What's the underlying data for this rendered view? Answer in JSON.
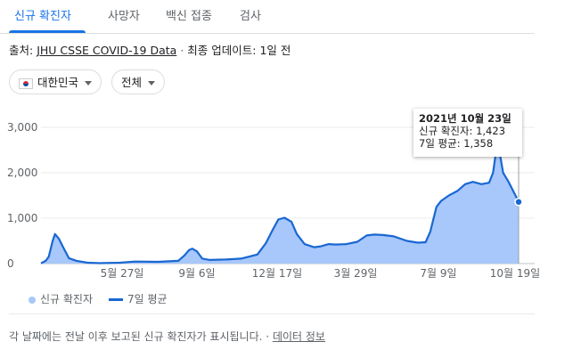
{
  "tabs": [
    {
      "label": "신규 확진자",
      "active": true
    },
    {
      "label": "사망자",
      "active": false
    },
    {
      "label": "백신 접종",
      "active": false
    },
    {
      "label": "검사",
      "active": false
    }
  ],
  "source": {
    "prefix": "출처:",
    "link": "JHU CSSE COVID-19 Data",
    "separator": "·",
    "updated": "최종 업데이트: 1일 전"
  },
  "filters": {
    "country": {
      "label": "대한민국",
      "flag_icon": "korea-flag-icon"
    },
    "period": {
      "label": "전체"
    }
  },
  "tooltip": {
    "date": "2021년 10월 23일",
    "new_cases": "신규 확진자: 1,423",
    "avg": "7일 평균: 1,358"
  },
  "legend": {
    "bars_label": "신규 확진자",
    "line_label": "7일 평균"
  },
  "footnote": {
    "text": "각 날짜에는 전날 이후 보고된 신규 확진자가 표시됩니다.",
    "separator": "·",
    "link": "데이터 정보"
  },
  "colors": {
    "accent": "#1a73e8",
    "bars": "#a8c7fa",
    "line": "#1967d2"
  },
  "chart_data": {
    "type": "area",
    "x_range": [
      "2020-02-15",
      "2021-10-23"
    ],
    "ylim": [
      0,
      3000
    ],
    "y_ticks": [
      "0",
      "1,000",
      "2,000",
      "3,000"
    ],
    "x_ticks": [
      "5월 27일",
      "9월 6일",
      "12월 17일",
      "3월 29일",
      "7월 9일",
      "10월 19일"
    ],
    "grid": true,
    "series": [
      {
        "name": "7일 평균",
        "x": [
          "2020-02-15",
          "2020-02-21",
          "2020-02-25",
          "2020-03-01",
          "2020-03-04",
          "2020-03-09",
          "2020-03-15",
          "2020-03-22",
          "2020-04-01",
          "2020-04-15",
          "2020-05-01",
          "2020-05-27",
          "2020-06-15",
          "2020-07-15",
          "2020-08-10",
          "2020-08-18",
          "2020-08-24",
          "2020-08-28",
          "2020-09-03",
          "2020-09-10",
          "2020-09-20",
          "2020-10-10",
          "2020-10-30",
          "2020-11-20",
          "2020-12-01",
          "2020-12-10",
          "2020-12-17",
          "2020-12-25",
          "2021-01-03",
          "2021-01-10",
          "2021-01-20",
          "2021-02-01",
          "2021-02-10",
          "2021-02-20",
          "2021-03-01",
          "2021-03-15",
          "2021-03-29",
          "2021-04-10",
          "2021-04-20",
          "2021-05-01",
          "2021-05-15",
          "2021-06-01",
          "2021-06-15",
          "2021-06-25",
          "2021-07-01",
          "2021-07-09",
          "2021-07-15",
          "2021-07-25",
          "2021-08-05",
          "2021-08-15",
          "2021-08-25",
          "2021-09-05",
          "2021-09-15",
          "2021-09-20",
          "2021-09-25",
          "2021-09-29",
          "2021-10-03",
          "2021-10-10",
          "2021-10-19",
          "2021-10-23"
        ],
        "values": [
          5,
          60,
          150,
          500,
          650,
          550,
          350,
          120,
          60,
          20,
          10,
          20,
          45,
          40,
          60,
          180,
          300,
          330,
          270,
          110,
          80,
          90,
          110,
          200,
          450,
          750,
          970,
          1010,
          920,
          650,
          430,
          360,
          380,
          430,
          420,
          430,
          480,
          620,
          640,
          630,
          600,
          500,
          460,
          470,
          700,
          1250,
          1380,
          1500,
          1600,
          1750,
          1800,
          1750,
          1780,
          2000,
          2600,
          2400,
          2000,
          1800,
          1500,
          1358
        ]
      }
    ]
  }
}
